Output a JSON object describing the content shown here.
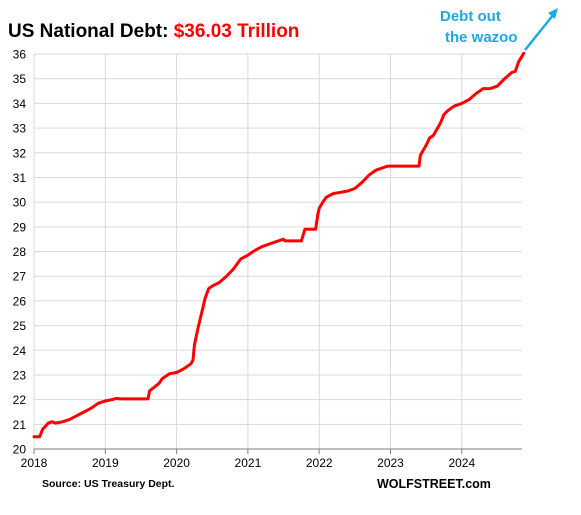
{
  "chart_data": {
    "type": "line",
    "title_prefix": "US National Debt: ",
    "title_value": "$36.03 Trillion",
    "annotation": [
      "Debt out",
      "the wazoo"
    ],
    "source": "Source: US Treasury Dept.",
    "brand": "WOLFSTREET.com",
    "xlim": [
      2018,
      2024.87
    ],
    "ylim": [
      20,
      36
    ],
    "x_ticks": [
      2018,
      2019,
      2020,
      2021,
      2022,
      2023,
      2024
    ],
    "x_tick_labels": [
      "2018",
      "2019",
      "2020",
      "2021",
      "2022",
      "2023",
      "2024"
    ],
    "y_ticks": [
      20,
      21,
      22,
      23,
      24,
      25,
      26,
      27,
      28,
      29,
      30,
      31,
      32,
      33,
      34,
      35,
      36
    ],
    "y_tick_labels": [
      "20",
      "21",
      "22",
      "23",
      "24",
      "25",
      "26",
      "27",
      "28",
      "29",
      "30",
      "31",
      "32",
      "33",
      "34",
      "35",
      "36"
    ],
    "grid": true,
    "colors": {
      "line": "#ff0000",
      "title_value": "#ff0000",
      "annotation": "#1ea9e0",
      "grid": "#d9d9d9"
    },
    "series": [
      {
        "x": [
          2018.0,
          2018.08,
          2018.12,
          2018.2,
          2018.25,
          2018.3,
          2018.4,
          2018.5,
          2018.6,
          2018.7,
          2018.8,
          2018.9,
          2019.0,
          2019.1,
          2019.15,
          2019.2,
          2019.6,
          2019.62,
          2019.75,
          2019.8,
          2019.9,
          2020.0,
          2020.1,
          2020.2,
          2020.23,
          2020.25,
          2020.3,
          2020.35,
          2020.4,
          2020.45,
          2020.5,
          2020.6,
          2020.7,
          2020.75,
          2020.8,
          2020.9,
          2021.0,
          2021.05,
          2021.1,
          2021.2,
          2021.3,
          2021.4,
          2021.5,
          2021.52,
          2021.6,
          2021.75,
          2021.8,
          2021.95,
          2021.98,
          2022.0,
          2022.05,
          2022.1,
          2022.2,
          2022.3,
          2022.4,
          2022.5,
          2022.6,
          2022.7,
          2022.8,
          2022.9,
          2022.95,
          2023.0,
          2023.05,
          2023.4,
          2023.42,
          2023.5,
          2023.55,
          2023.6,
          2023.7,
          2023.75,
          2023.8,
          2023.9,
          2024.0,
          2024.1,
          2024.2,
          2024.3,
          2024.4,
          2024.5,
          2024.6,
          2024.7,
          2024.75,
          2024.8,
          2024.87
        ],
        "values": [
          20.5,
          20.5,
          20.8,
          21.05,
          21.1,
          21.05,
          21.1,
          21.2,
          21.35,
          21.5,
          21.65,
          21.85,
          21.95,
          22.0,
          22.05,
          22.03,
          22.03,
          22.35,
          22.65,
          22.85,
          23.05,
          23.1,
          23.25,
          23.45,
          23.6,
          24.2,
          24.9,
          25.5,
          26.1,
          26.5,
          26.6,
          26.75,
          27.0,
          27.15,
          27.3,
          27.7,
          27.85,
          27.95,
          28.05,
          28.2,
          28.3,
          28.4,
          28.5,
          28.43,
          28.43,
          28.43,
          28.9,
          28.9,
          29.5,
          29.75,
          30.0,
          30.2,
          30.35,
          30.4,
          30.45,
          30.55,
          30.8,
          31.1,
          31.3,
          31.4,
          31.45,
          31.46,
          31.46,
          31.46,
          31.9,
          32.3,
          32.6,
          32.7,
          33.2,
          33.55,
          33.7,
          33.9,
          34.0,
          34.15,
          34.4,
          34.6,
          34.6,
          34.7,
          35.0,
          35.25,
          35.3,
          35.7,
          36.03
        ]
      }
    ]
  }
}
